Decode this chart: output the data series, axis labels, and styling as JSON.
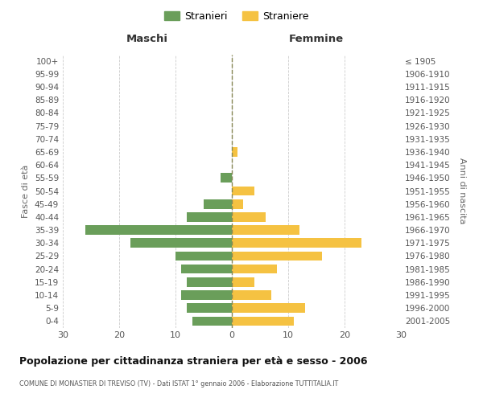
{
  "age_groups": [
    "0-4",
    "5-9",
    "10-14",
    "15-19",
    "20-24",
    "25-29",
    "30-34",
    "35-39",
    "40-44",
    "45-49",
    "50-54",
    "55-59",
    "60-64",
    "65-69",
    "70-74",
    "75-79",
    "80-84",
    "85-89",
    "90-94",
    "95-99",
    "100+"
  ],
  "birth_years": [
    "2001-2005",
    "1996-2000",
    "1991-1995",
    "1986-1990",
    "1981-1985",
    "1976-1980",
    "1971-1975",
    "1966-1970",
    "1961-1965",
    "1956-1960",
    "1951-1955",
    "1946-1950",
    "1941-1945",
    "1936-1940",
    "1931-1935",
    "1926-1930",
    "1921-1925",
    "1916-1920",
    "1911-1915",
    "1906-1910",
    "≤ 1905"
  ],
  "males": [
    7,
    8,
    9,
    8,
    9,
    10,
    18,
    26,
    8,
    5,
    0,
    2,
    0,
    0,
    0,
    0,
    0,
    0,
    0,
    0,
    0
  ],
  "females": [
    11,
    13,
    7,
    4,
    8,
    16,
    23,
    12,
    6,
    2,
    4,
    0,
    0,
    1,
    0,
    0,
    0,
    0,
    0,
    0,
    0
  ],
  "male_color": "#6a9e5a",
  "female_color": "#f5c242",
  "title": "Popolazione per cittadinanza straniera per età e sesso - 2006",
  "subtitle": "COMUNE DI MONASTIER DI TREVISO (TV) - Dati ISTAT 1° gennaio 2006 - Elaborazione TUTTITALIA.IT",
  "xlabel_left": "Maschi",
  "xlabel_right": "Femmine",
  "ylabel_left": "Fasce di età",
  "ylabel_right": "Anni di nascita",
  "legend_males": "Stranieri",
  "legend_females": "Straniere",
  "xlim": 30,
  "background_color": "#ffffff",
  "grid_color": "#cccccc"
}
